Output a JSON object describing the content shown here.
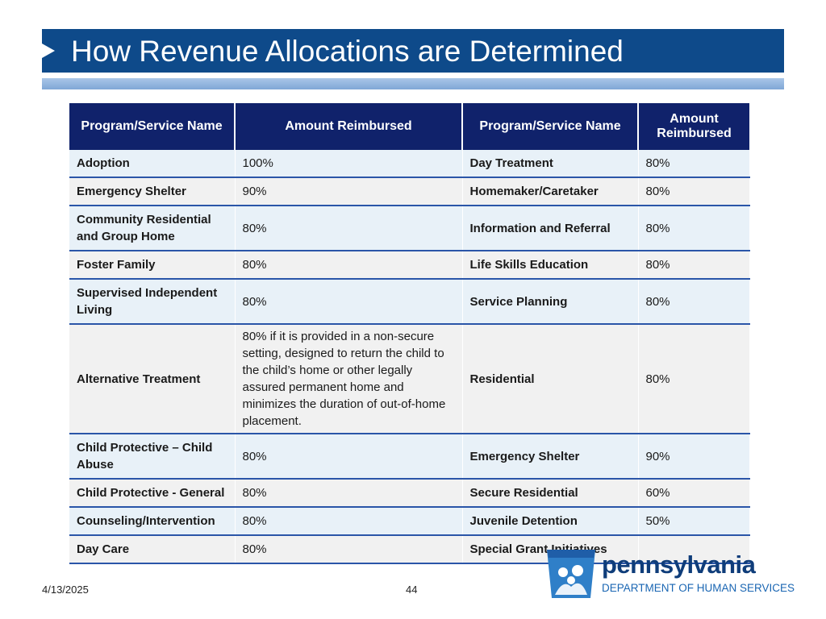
{
  "title": "How Revenue Allocations are Determined",
  "table": {
    "headers": [
      "Program/Service Name",
      "Amount  Reimbursed",
      "Program/Service Name",
      "Amount Reimbursed"
    ],
    "rows": [
      {
        "name1": "Adoption",
        "amt1": "100%",
        "name2": "Day Treatment",
        "amt2": "80%"
      },
      {
        "name1": "Emergency Shelter",
        "amt1": "90%",
        "name2": "Homemaker/Caretaker",
        "amt2": "80%"
      },
      {
        "name1": "Community Residential and Group Home",
        "amt1": "80%",
        "name2": "Information and Referral",
        "amt2": "80%"
      },
      {
        "name1": "Foster Family",
        "amt1": "80%",
        "name2": "Life Skills Education",
        "amt2": "80%"
      },
      {
        "name1": "Supervised Independent Living",
        "amt1": "80%",
        "name2": "Service Planning",
        "amt2": "80%"
      },
      {
        "name1": "Alternative Treatment",
        "amt1": "80% if it is provided in a non-secure setting, designed to return the child to the child’s home or other legally assured permanent home and minimizes the duration of out-of-home placement.",
        "name2": "Residential",
        "amt2": "80%"
      },
      {
        "name1": "Child Protective – Child Abuse",
        "amt1": "80%",
        "name2": "Emergency Shelter",
        "amt2": "90%"
      },
      {
        "name1": "Child Protective - General",
        "amt1": "80%",
        "name2": "Secure Residential",
        "amt2": "60%"
      },
      {
        "name1": "Counseling/Intervention",
        "amt1": "80%",
        "name2": "Juvenile Detention",
        "amt2": "50%"
      },
      {
        "name1": "Day Care",
        "amt1": "80%",
        "name2": "Special Grant Initiatives",
        "amt2": ""
      }
    ]
  },
  "footer": {
    "date": "4/13/2025",
    "page": "44"
  },
  "logo": {
    "wordmark": "pennsylvania",
    "subtitle": "DEPARTMENT OF HUMAN SERVICES",
    "icon": "keystone-family-icon"
  },
  "colors": {
    "title_bar": "#0e4a8a",
    "header_bg": "#10226b",
    "row_light_blue": "#e8f1f8",
    "row_light_gray": "#f1f1f1",
    "row_rule": "#2a55a8"
  }
}
